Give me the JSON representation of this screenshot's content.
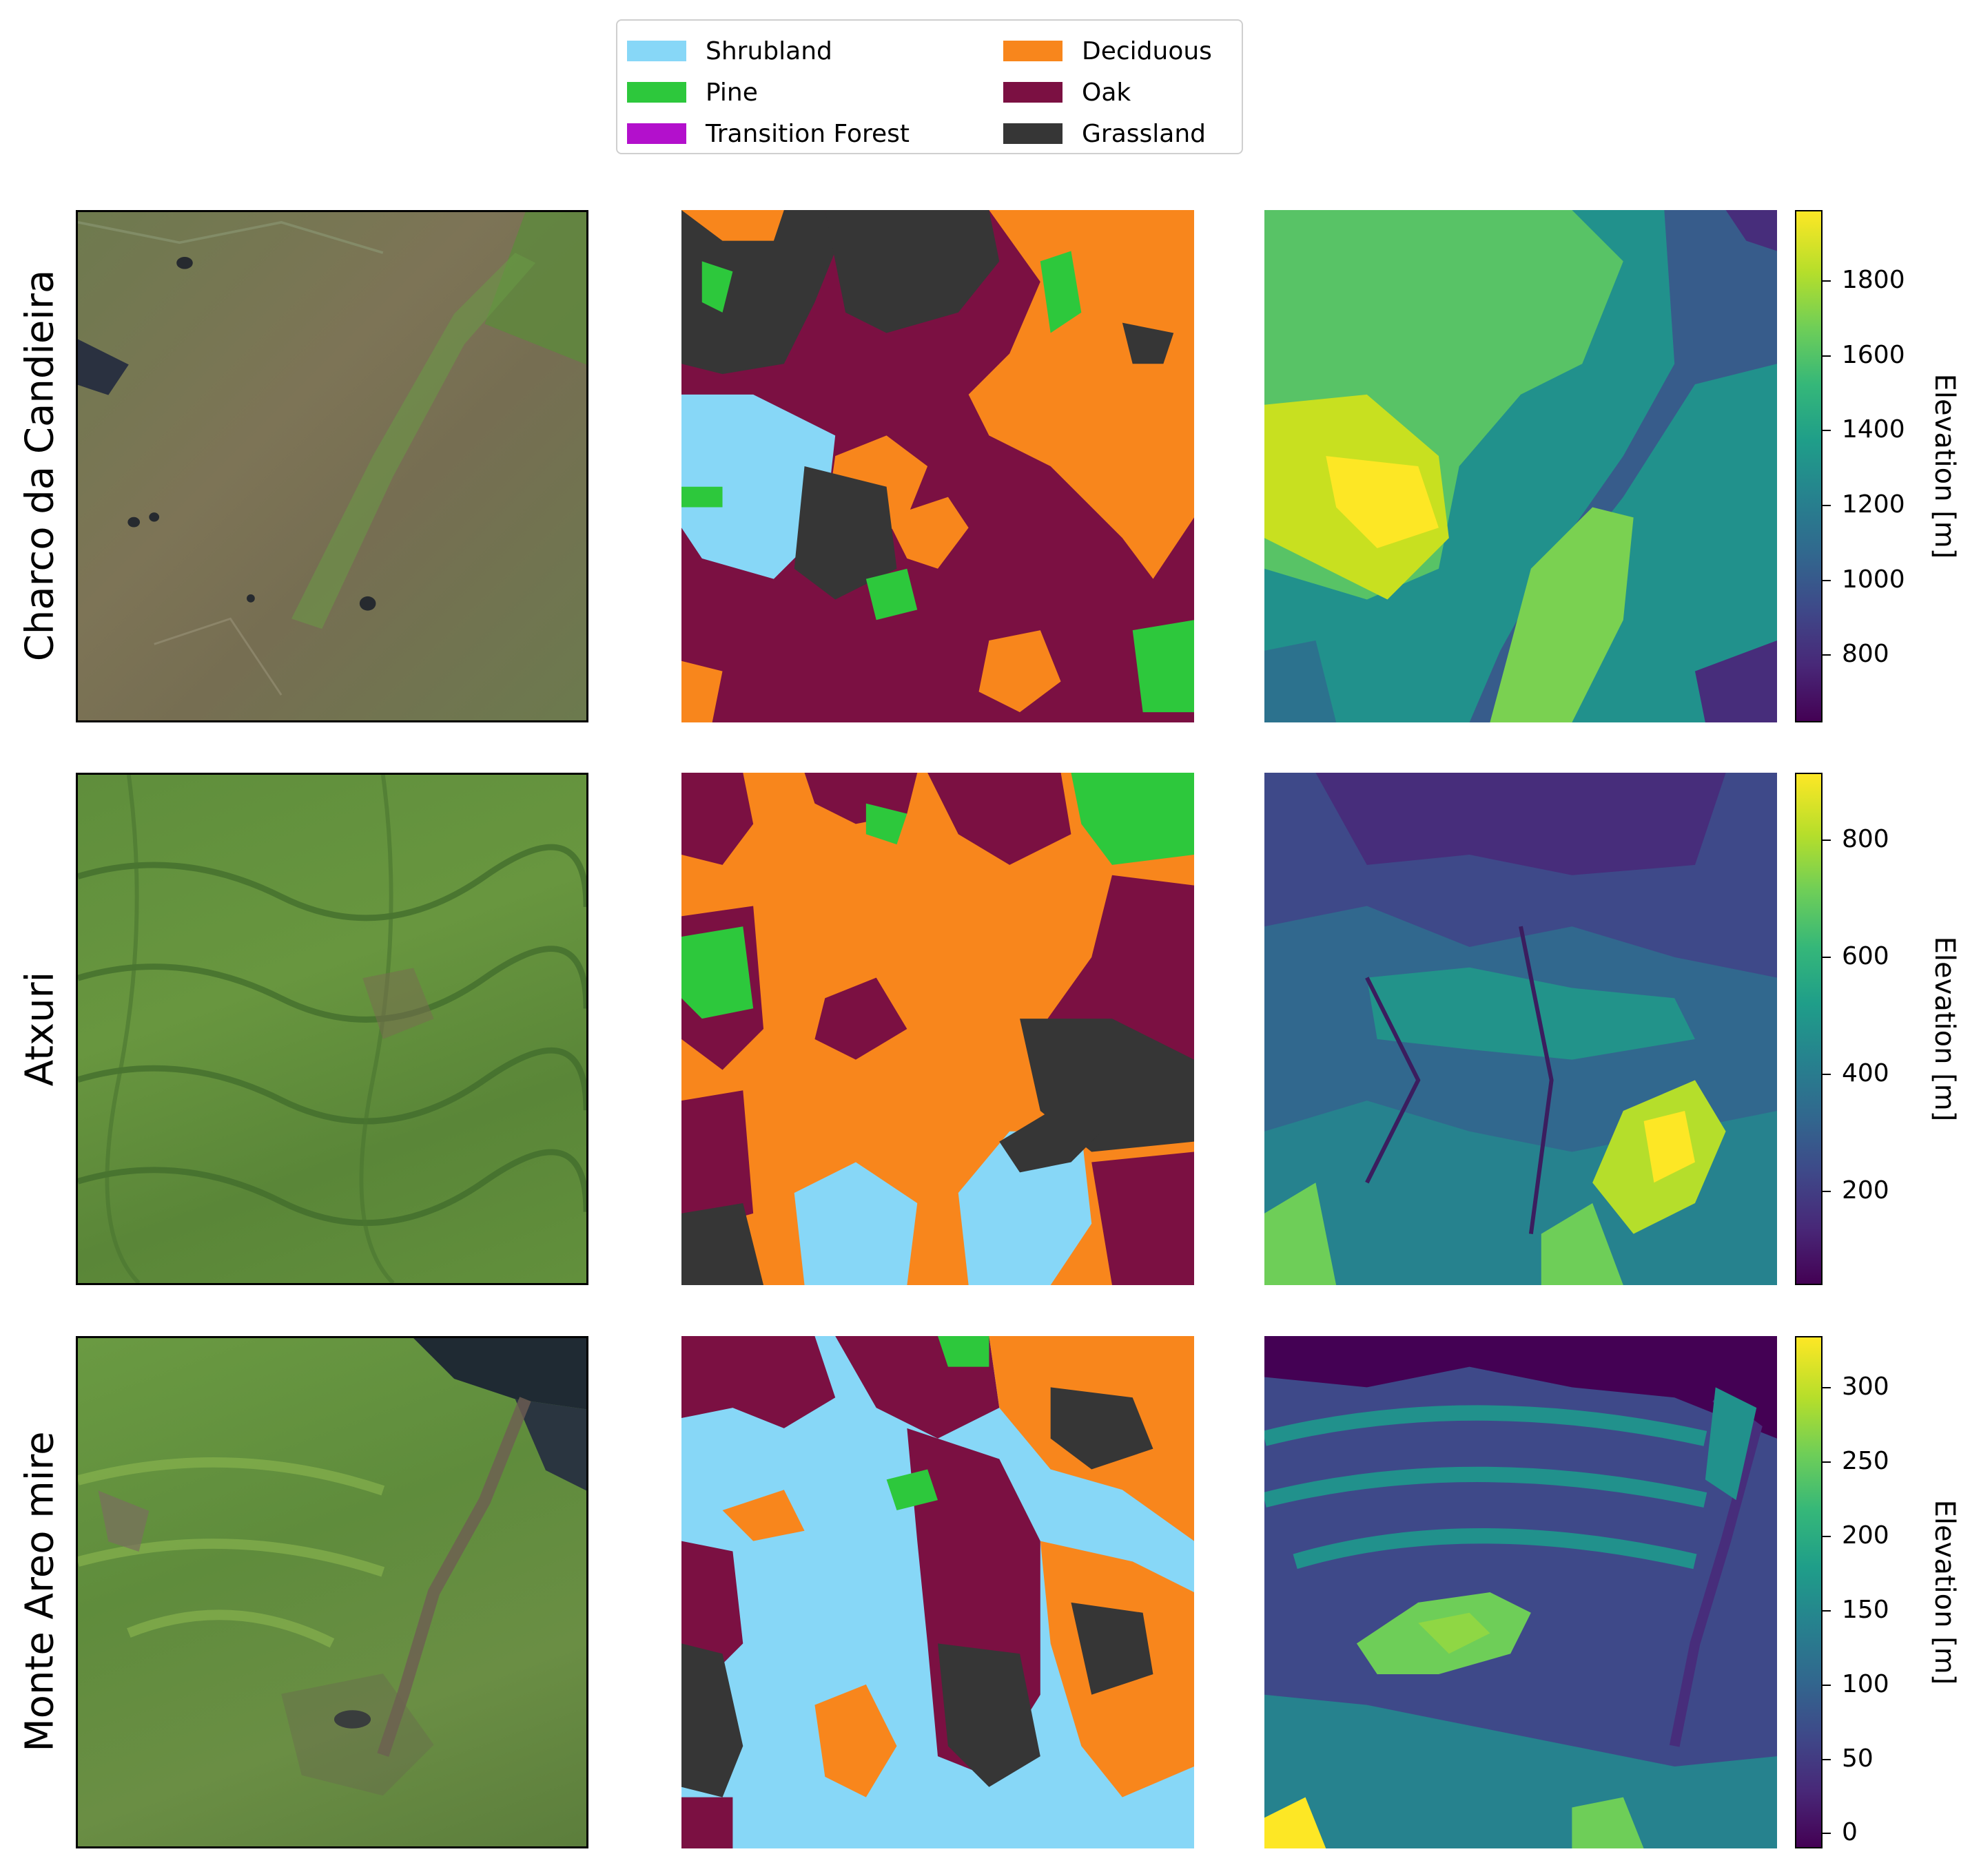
{
  "legend": {
    "items": [
      {
        "label": "Shrubland",
        "color": "#87d7f7"
      },
      {
        "label": "Pine",
        "color": "#2dc83c"
      },
      {
        "label": "Transition Forest",
        "color": "#b310cc"
      },
      {
        "label": "Deciduous",
        "color": "#f8861c"
      },
      {
        "label": "Oak",
        "color": "#7b1042"
      },
      {
        "label": "Grassland",
        "color": "#363636"
      }
    ]
  },
  "rows": [
    {
      "site": "Charco da Candieira",
      "colorbar": {
        "label": "Elevation [m]",
        "min": 620,
        "max": 1990,
        "ticks": [
          "800",
          "1000",
          "1200",
          "1400",
          "1600",
          "1800"
        ]
      }
    },
    {
      "site": "Atxuri",
      "colorbar": {
        "label": "Elevation [m]",
        "min": 40,
        "max": 915,
        "ticks": [
          "200",
          "400",
          "600",
          "800"
        ]
      }
    },
    {
      "site": "Monte Areo mire",
      "colorbar": {
        "label": "Elevation [m]",
        "min": -10,
        "max": 335,
        "ticks": [
          "0",
          "50",
          "100",
          "150",
          "200",
          "250",
          "300"
        ]
      }
    }
  ],
  "colormap": "viridis"
}
